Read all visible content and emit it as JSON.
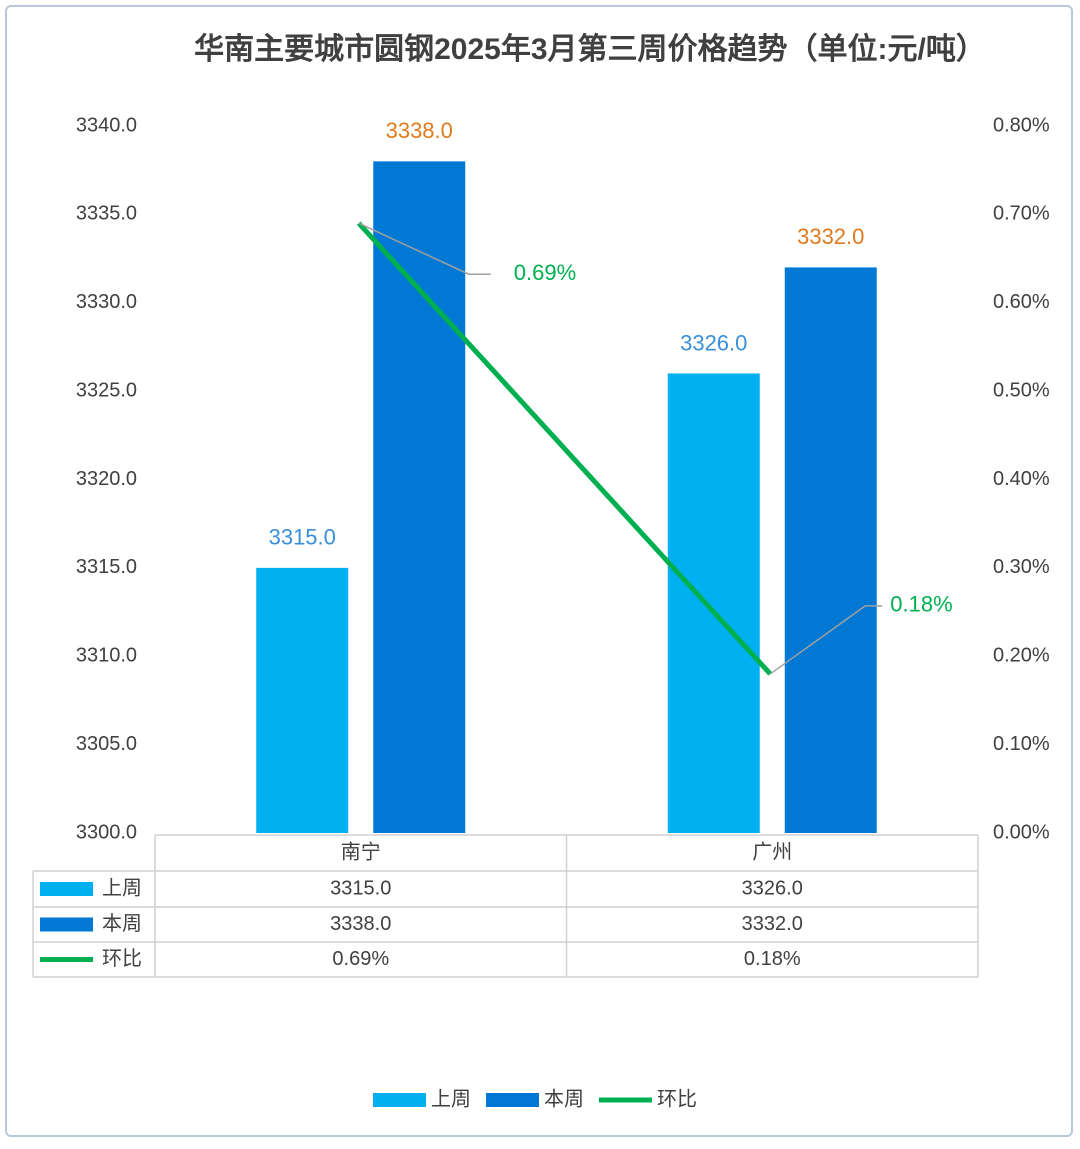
{
  "chart_data": {
    "type": "bar-line",
    "title": "华南主要城市圆钢2025年3月第三周价格趋势（单位:元/吨）",
    "categories": [
      "南宁",
      "广州"
    ],
    "series": [
      {
        "name": "上周",
        "type": "bar",
        "color": "#00b0f0",
        "values": [
          3315,
          3326
        ],
        "value_labels": [
          "3315.0",
          "3326.0"
        ]
      },
      {
        "name": "本周",
        "type": "bar",
        "color": "#0078d4",
        "values": [
          3338,
          3332
        ],
        "value_labels": [
          "3338.0",
          "3332.0"
        ]
      },
      {
        "name": "环比",
        "type": "line",
        "axis": "y2",
        "color": "#00b050",
        "values": [
          0.69,
          0.18
        ],
        "value_labels": [
          "0.69%",
          "0.18%"
        ]
      }
    ],
    "ylim": [
      3300,
      3340
    ],
    "yticks": [
      {
        "value": 3300,
        "label": "3300.0"
      },
      {
        "value": 3305,
        "label": "3305.0"
      },
      {
        "value": 3310,
        "label": "3310.0"
      },
      {
        "value": 3315,
        "label": "3315.0"
      },
      {
        "value": 3320,
        "label": "3320.0"
      },
      {
        "value": 3325,
        "label": "3325.0"
      },
      {
        "value": 3330,
        "label": "3330.0"
      },
      {
        "value": 3335,
        "label": "3335.0"
      },
      {
        "value": 3340,
        "label": "3340.0"
      }
    ],
    "y2lim": [
      0,
      0.8
    ],
    "y2ticks": [
      {
        "value": 0,
        "label": "0.00%"
      },
      {
        "value": 0.1,
        "label": "0.10%"
      },
      {
        "value": 0.2,
        "label": "0.20%"
      },
      {
        "value": 0.3,
        "label": "0.30%"
      },
      {
        "value": 0.4,
        "label": "0.40%"
      },
      {
        "value": 0.5,
        "label": "0.50%"
      },
      {
        "value": 0.6,
        "label": "0.60%"
      },
      {
        "value": 0.7,
        "label": "0.70%"
      },
      {
        "value": 0.8,
        "label": "0.80%"
      }
    ],
    "grid": false,
    "data_table": true,
    "legend": "bottom"
  }
}
